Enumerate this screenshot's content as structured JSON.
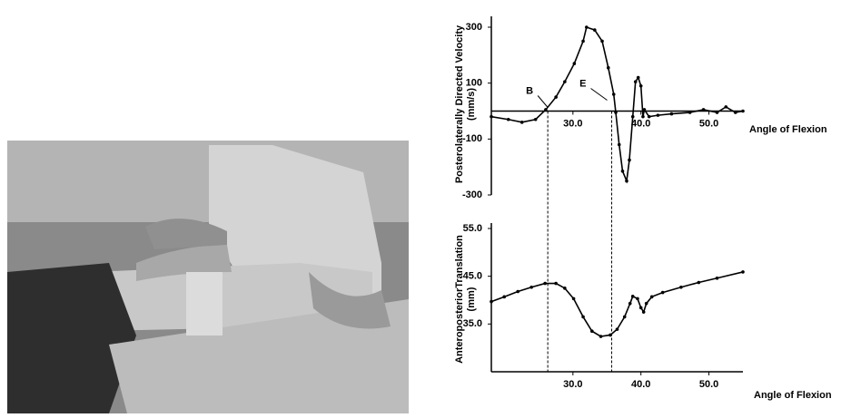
{
  "chart_data": [
    {
      "type": "line",
      "ylabel": "Posterolaterally Directed Velocity",
      "yunit": "(mm/s)",
      "xlabel": "Angle of Flexion",
      "x": [
        18,
        20.5,
        22.5,
        24.5,
        26,
        27.5,
        28.8,
        30.2,
        31.5,
        32,
        33.2,
        34.3,
        35.2,
        36,
        36.3,
        36.8,
        37.3,
        37.9,
        38.3,
        38.8,
        39.2,
        39.6,
        40,
        40.3,
        40.5,
        41.2,
        42.5,
        44.5,
        47.2,
        49.2,
        51.2,
        52.5,
        53.9,
        55
      ],
      "values": [
        -20,
        -30,
        -40,
        -30,
        5,
        50,
        105,
        170,
        250,
        300,
        290,
        250,
        155,
        60,
        -5,
        -120,
        -215,
        -250,
        -175,
        -20,
        105,
        120,
        90,
        -20,
        5,
        -20,
        -15,
        -10,
        -5,
        5,
        -5,
        15,
        -5,
        0
      ],
      "color": "#000000",
      "xlim": [
        18,
        55
      ],
      "ylim": [
        -300,
        300
      ],
      "xticks": [
        {
          "value": 30,
          "label": "30.0"
        },
        {
          "value": 40,
          "label": "40.0"
        },
        {
          "value": 50,
          "label": "50.0"
        }
      ],
      "yticks": [
        300,
        100,
        -100,
        -300
      ],
      "markers": [
        {
          "label": "B",
          "x": 26.3
        },
        {
          "label": "E",
          "x": 35.7
        }
      ]
    },
    {
      "type": "line",
      "ylabel": "AnteroposteriorTranslation",
      "yunit": "(mm)",
      "xlabel": "Angle of Flexion",
      "x": [
        18,
        19.9,
        21.9,
        23.9,
        25.9,
        27.5,
        28.8,
        30.1,
        31.5,
        32.8,
        34.1,
        35.5,
        36.5,
        37.6,
        38.4,
        38.8,
        39.5,
        40,
        40.4,
        40.8,
        41.6,
        43.2,
        45.9,
        48.5,
        51.2,
        55
      ],
      "values": [
        39.7,
        40.7,
        41.8,
        42.7,
        43.5,
        43.5,
        42.5,
        40.3,
        36.5,
        33.5,
        32.4,
        32.7,
        33.9,
        36.5,
        39.3,
        40.8,
        40.3,
        38.4,
        37.5,
        39.3,
        40.7,
        41.6,
        42.7,
        43.7,
        44.6,
        45.9
      ],
      "color": "#000000",
      "xlim": [
        18,
        55
      ],
      "ylim": [
        25,
        55
      ],
      "xticks": [
        {
          "value": 30,
          "label": "30.0"
        },
        {
          "value": 40,
          "label": "40.0"
        },
        {
          "value": 50,
          "label": "50.0"
        }
      ],
      "yticks": [
        {
          "value": 55,
          "label": "55.0"
        },
        {
          "value": 45,
          "label": "45.0"
        },
        {
          "value": 35,
          "label": "35.0"
        }
      ]
    }
  ]
}
